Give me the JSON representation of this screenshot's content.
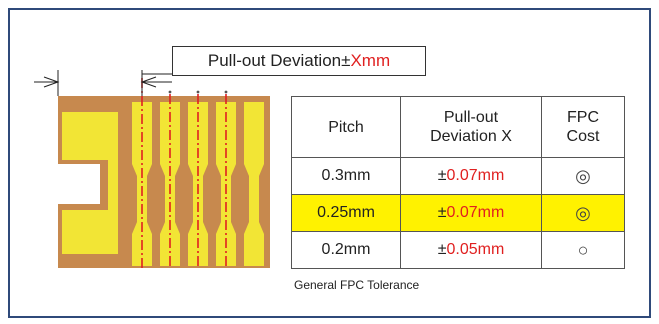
{
  "callout": {
    "prefix": "Pull-out Deviation±",
    "value": "Xmm"
  },
  "table": {
    "headers": [
      {
        "line1": "Pitch",
        "line2": ""
      },
      {
        "line1": "Pull-out",
        "line2": "Deviation X"
      },
      {
        "line1": "FPC",
        "line2": "Cost"
      }
    ],
    "rows": [
      {
        "pitch": "0.3mm",
        "pm": "±",
        "deviation": "0.07mm",
        "cost": "◎",
        "highlight": false
      },
      {
        "pitch": "0.25mm",
        "pm": "±",
        "deviation": "0.07mm",
        "cost": "◎",
        "highlight": true
      },
      {
        "pitch": "0.2mm",
        "pm": "±",
        "deviation": "0.05mm",
        "cost": "○",
        "highlight": false
      }
    ]
  },
  "caption": "General FPC Tolerance",
  "colors": {
    "substrate": "#c7894e",
    "pad": "#f2e535",
    "centerline": "#e02020",
    "border": "#2f4a7a",
    "highlight": "#fff200"
  }
}
